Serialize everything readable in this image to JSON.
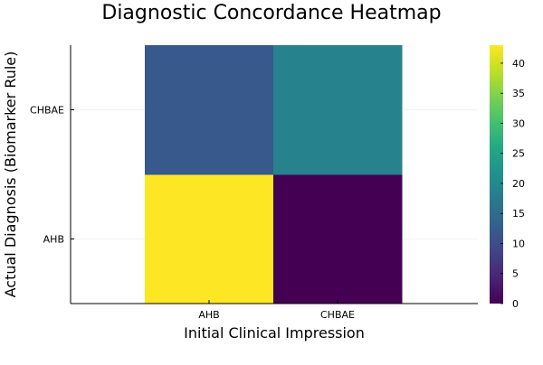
{
  "chart_data": {
    "type": "heatmap",
    "title": "Diagnostic Concordance Heatmap",
    "xlabel": "Initial Clinical Impression",
    "ylabel": "Actual Diagnosis (Biomarker Rule)",
    "x_categories": [
      "AHB",
      "CHBAE"
    ],
    "y_categories": [
      "AHB",
      "CHBAE"
    ],
    "values": [
      [
        43,
        0
      ],
      [
        12,
        19
      ]
    ],
    "colorbar": {
      "min": 0,
      "max": 43,
      "ticks": [
        0,
        5,
        10,
        15,
        20,
        25,
        30,
        35,
        40
      ],
      "colormap": "viridis"
    },
    "grid": true
  }
}
